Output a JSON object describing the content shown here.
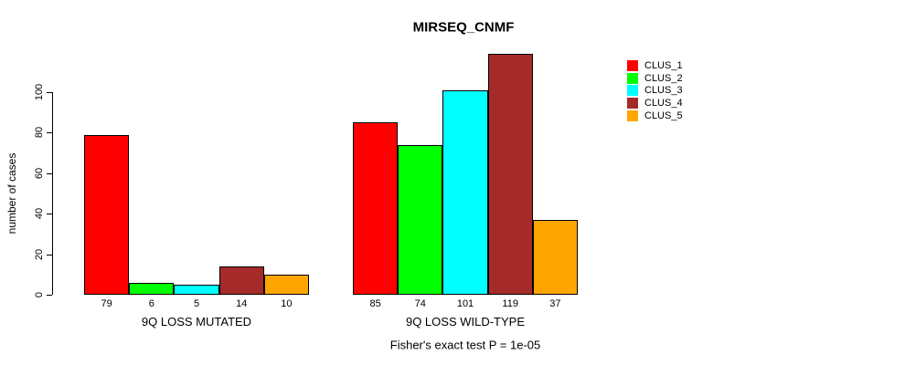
{
  "figure": {
    "title": "MIRSEQ_CNMF",
    "annotation": "Fisher's exact test P = 1e-05"
  },
  "chart_data": {
    "type": "bar",
    "title": "MIRSEQ_CNMF",
    "xlabel": "",
    "ylabel": "number of cases",
    "yticks": [
      0,
      20,
      40,
      60,
      80,
      100
    ],
    "ylim": [
      0,
      120
    ],
    "grid": false,
    "background": "#ffffff",
    "axis_color": "#000000",
    "legend_position": "top-right",
    "categories": [
      "9Q LOSS MUTATED",
      "9Q LOSS WILD-TYPE"
    ],
    "series": [
      {
        "name": "CLUS_1",
        "color": "#FF0000",
        "values": [
          79,
          85
        ]
      },
      {
        "name": "CLUS_2",
        "color": "#00FF00",
        "values": [
          6,
          74
        ]
      },
      {
        "name": "CLUS_3",
        "color": "#00FFFF",
        "values": [
          5,
          101
        ]
      },
      {
        "name": "CLUS_4",
        "color": "#A52A2A",
        "values": [
          14,
          119
        ]
      },
      {
        "name": "CLUS_5",
        "color": "#FFA500",
        "values": [
          10,
          37
        ]
      }
    ],
    "bar_value_labels": [
      [
        79,
        6,
        5,
        14,
        10
      ],
      [
        85,
        74,
        101,
        119,
        37
      ]
    ],
    "annotation": "Fisher's exact test P = 1e-05"
  }
}
